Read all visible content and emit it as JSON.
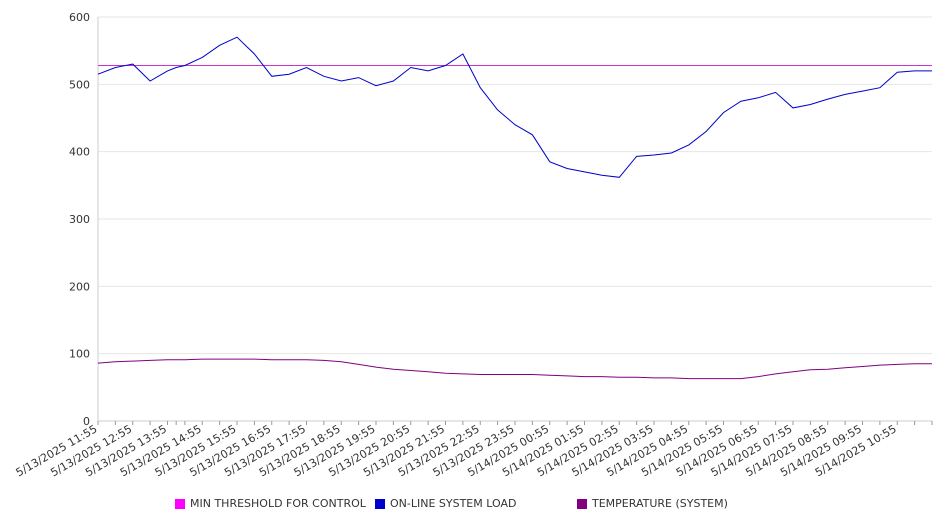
{
  "chart_data": {
    "type": "line",
    "title": "",
    "xlabel": "",
    "ylabel": "",
    "ylim": [
      0,
      600
    ],
    "yticks": [
      "0",
      "100",
      "200",
      "300",
      "400",
      "500",
      "600"
    ],
    "grid": "horizontal",
    "legend_position": "bottom",
    "x_tick_labels": [
      "5/13/2025 11:55",
      "5/13/2025 12:55",
      "5/13/2025 13:55",
      "5/13/2025 14:55",
      "5/13/2025 15:55",
      "5/13/2025 16:55",
      "5/13/2025 17:55",
      "5/13/2025 18:55",
      "5/13/2025 19:55",
      "5/13/2025 20:55",
      "5/13/2025 21:55",
      "5/13/2025 22:55",
      "5/13/2025 23:55",
      "5/14/2025 00:55",
      "5/14/2025 01:55",
      "5/14/2025 02:55",
      "5/14/2025 03:55",
      "5/14/2025 04:55",
      "5/14/2025 05:55",
      "5/14/2025 06:55",
      "5/14/2025 07:55",
      "5/14/2025 08:55",
      "5/14/2025 09:55",
      "5/14/2025 10:55"
    ],
    "x_hours": [
      0,
      0.5,
      1,
      1.5,
      2,
      2.25,
      2.5,
      3,
      3.5,
      4,
      4.5,
      5,
      5.5,
      6,
      6.5,
      7,
      7.5,
      8,
      8.5,
      9,
      9.5,
      10,
      10.5,
      11,
      11.5,
      12,
      12.5,
      13,
      13.5,
      14,
      14.5,
      15,
      15.5,
      16,
      16.5,
      17,
      17.5,
      18,
      18.5,
      19,
      19.5,
      20,
      20.5,
      21,
      21.5,
      22,
      22.5,
      23,
      23.5,
      24
    ],
    "series": [
      {
        "name": "MIN THRESHOLD FOR CONTROL",
        "color": "#cc33cc",
        "values": [
          528,
          528,
          528,
          528,
          528,
          528,
          528,
          528,
          528,
          528,
          528,
          528,
          528,
          528,
          528,
          528,
          528,
          528,
          528,
          528,
          528,
          528,
          528,
          528,
          528,
          528,
          528,
          528,
          528,
          528,
          528,
          528,
          528,
          528,
          528,
          528,
          528,
          528,
          528,
          528,
          528,
          528,
          528,
          528,
          528,
          528,
          528,
          528,
          528,
          528
        ]
      },
      {
        "name": "ON-LINE SYSTEM LOAD",
        "color": "#0000cc",
        "values": [
          515,
          525,
          530,
          505,
          520,
          525,
          528,
          540,
          558,
          570,
          545,
          512,
          515,
          525,
          512,
          505,
          510,
          498,
          505,
          525,
          520,
          528,
          545,
          495,
          462,
          440,
          425,
          385,
          375,
          370,
          365,
          362,
          393,
          395,
          398,
          410,
          430,
          458,
          475,
          480,
          488,
          465,
          470,
          478,
          485,
          490,
          495,
          518,
          520,
          520
        ]
      },
      {
        "name": "TEMPERATURE (SYSTEM)",
        "color": "#800080",
        "values": [
          86,
          88,
          89,
          90,
          91,
          91,
          91,
          92,
          92,
          92,
          92,
          91,
          91,
          91,
          90,
          88,
          84,
          80,
          77,
          75,
          73,
          71,
          70,
          69,
          69,
          69,
          69,
          68,
          67,
          66,
          66,
          65,
          65,
          64,
          64,
          63,
          63,
          63,
          63,
          66,
          70,
          73,
          76,
          77,
          79,
          81,
          83,
          84,
          85,
          85
        ]
      }
    ]
  }
}
